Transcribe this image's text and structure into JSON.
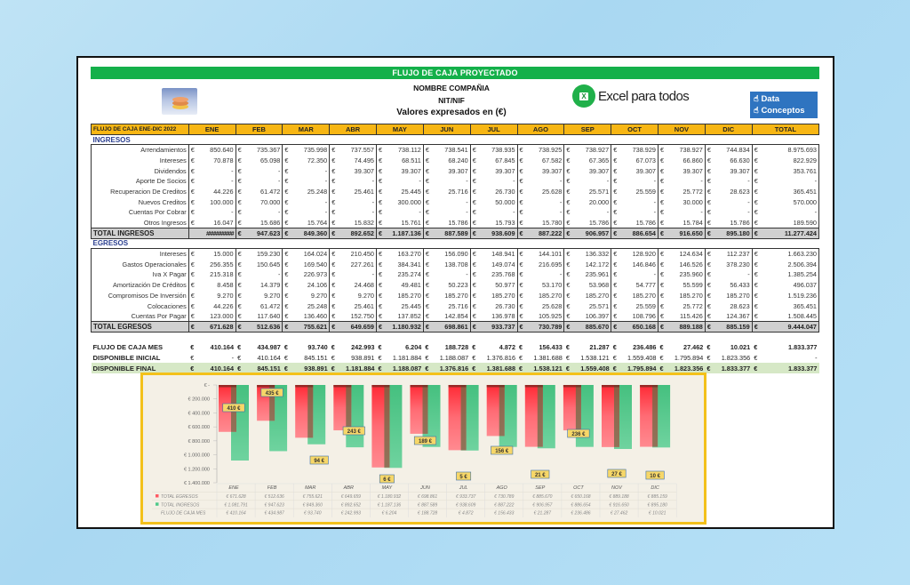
{
  "sheet": {
    "title": "FLUJO DE CAJA PROYECTADO",
    "company_name": "NOMBRE COMPAÑIA",
    "tax_id": "NIT/NIF",
    "currency_note": "Valores expresados en (€)",
    "brand": "Excel para todos",
    "brand_icon_letter": "X",
    "links": [
      {
        "icon": "pointing-hand-icon",
        "label": "Data"
      },
      {
        "icon": "pointing-hand-icon",
        "label": "Conceptos"
      }
    ]
  },
  "table": {
    "header_label": "FLUJO DE CAJA ENE-DIC 2022",
    "months": [
      "ENE",
      "FEB",
      "MAR",
      "ABR",
      "MAY",
      "JUN",
      "JUL",
      "AGO",
      "SEP",
      "OCT",
      "NOV",
      "DIC"
    ],
    "total_label": "TOTAL",
    "currency_symbol": "€",
    "ingresos": {
      "section_label": "INGRESOS",
      "rows": [
        {
          "label": "Arrendamientos",
          "values": [
            "850.640",
            "735.367",
            "735.998",
            "737.557",
            "738.112",
            "738.541",
            "738.935",
            "738.925",
            "738.927",
            "738.929",
            "738.927",
            "744.834"
          ],
          "total": "8.975.693"
        },
        {
          "label": "Intereses",
          "values": [
            "70.878",
            "65.098",
            "72.350",
            "74.495",
            "68.511",
            "68.240",
            "67.845",
            "67.582",
            "67.365",
            "67.073",
            "66.860",
            "66.630"
          ],
          "total": "822.929"
        },
        {
          "label": "Dividendos",
          "values": [
            "-",
            "-",
            "-",
            "39.307",
            "39.307",
            "39.307",
            "39.307",
            "39.307",
            "39.307",
            "39.307",
            "39.307",
            "39.307"
          ],
          "total": "353.761"
        },
        {
          "label": "Aporte De Socios",
          "values": [
            "-",
            "-",
            "-",
            "-",
            "-",
            "-",
            "-",
            "-",
            "-",
            "-",
            "-",
            "-"
          ],
          "total": "-"
        },
        {
          "label": "Recuperacion De Creditos",
          "values": [
            "44.226",
            "61.472",
            "25.248",
            "25.461",
            "25.445",
            "25.716",
            "26.730",
            "25.628",
            "25.571",
            "25.559",
            "25.772",
            "28.623"
          ],
          "total": "365.451"
        },
        {
          "label": "Nuevos Creditos",
          "values": [
            "100.000",
            "70.000",
            "-",
            "-",
            "300.000",
            "-",
            "50.000",
            "-",
            "20.000",
            "-",
            "30.000",
            "-"
          ],
          "total": "570.000"
        },
        {
          "label": "Cuentas Por Cobrar",
          "values": [
            "-",
            "-",
            "-",
            "-",
            "-",
            "-",
            "-",
            "-",
            "-",
            "-",
            "-",
            "-"
          ],
          "total": "-"
        },
        {
          "label": "Otros Ingresos",
          "values": [
            "16.047",
            "15.686",
            "15.764",
            "15.832",
            "15.761",
            "15.786",
            "15.793",
            "15.780",
            "15.786",
            "15.786",
            "15.784",
            "15.786"
          ],
          "total": "189.590"
        }
      ],
      "total_row": {
        "label": "TOTAL INGRESOS",
        "values": [
          "##########",
          "947.623",
          "849.360",
          "892.652",
          "1.187.136",
          "887.589",
          "938.609",
          "887.222",
          "906.957",
          "886.654",
          "916.650",
          "895.180"
        ],
        "total": "11.277.424"
      }
    },
    "egresos": {
      "section_label": "EGRESOS",
      "rows": [
        {
          "label": "Intereses",
          "values": [
            "15.000",
            "159.230",
            "164.024",
            "210.450",
            "163.270",
            "156.090",
            "148.941",
            "144.101",
            "136.332",
            "128.920",
            "124.634",
            "112.237"
          ],
          "total": "1.663.230"
        },
        {
          "label": "Gastos Operacionales",
          "values": [
            "256.355",
            "150.645",
            "169.540",
            "227.261",
            "384.341",
            "138.708",
            "149.074",
            "216.695",
            "142.172",
            "146.846",
            "146.526",
            "378.230"
          ],
          "total": "2.506.394"
        },
        {
          "label": "Iva X Pagar",
          "values": [
            "215.318",
            "-",
            "226.973",
            "-",
            "235.274",
            "-",
            "235.768",
            "-",
            "235.961",
            "-",
            "235.960",
            "-"
          ],
          "total": "1.385.254"
        },
        {
          "label": "Amortización De Créditos",
          "values": [
            "8.458",
            "14.379",
            "24.106",
            "24.468",
            "49.481",
            "50.223",
            "50.977",
            "53.170",
            "53.968",
            "54.777",
            "55.599",
            "56.433"
          ],
          "total": "496.037"
        },
        {
          "label": "Compromisos De Inversión",
          "values": [
            "9.270",
            "9.270",
            "9.270",
            "9.270",
            "185.270",
            "185.270",
            "185.270",
            "185.270",
            "185.270",
            "185.270",
            "185.270",
            "185.270"
          ],
          "total": "1.519.236"
        },
        {
          "label": "Colocaciones",
          "values": [
            "44.226",
            "61.472",
            "25.248",
            "25.461",
            "25.445",
            "25.716",
            "26.730",
            "25.628",
            "25.571",
            "25.559",
            "25.772",
            "28.623"
          ],
          "total": "365.451"
        },
        {
          "label": "Cuentas Por Pagar",
          "values": [
            "123.000",
            "117.640",
            "136.460",
            "152.750",
            "137.852",
            "142.854",
            "136.978",
            "105.925",
            "106.397",
            "108.796",
            "115.426",
            "124.367"
          ],
          "total": "1.508.445"
        }
      ],
      "total_row": {
        "label": "TOTAL EGRESOS",
        "values": [
          "671.628",
          "512.636",
          "755.621",
          "649.659",
          "1.180.932",
          "698.861",
          "933.737",
          "730.789",
          "885.670",
          "650.168",
          "889.188",
          "885.159"
        ],
        "total": "9.444.047"
      }
    },
    "summary": [
      {
        "label": "FLUJO DE CAJA MES",
        "values": [
          "410.164",
          "434.987",
          "93.740",
          "242.993",
          "6.204",
          "188.728",
          "4.872",
          "156.433",
          "21.287",
          "236.486",
          "27.462",
          "10.021"
        ],
        "total": "1.833.377",
        "style": "plain"
      },
      {
        "label": "DISPONIBLE INICIAL",
        "values": [
          "-",
          "410.164",
          "845.151",
          "938.891",
          "1.181.884",
          "1.188.087",
          "1.376.816",
          "1.381.688",
          "1.538.121",
          "1.559.408",
          "1.795.894",
          "1.823.356"
        ],
        "total": "-",
        "style": "initial"
      },
      {
        "label": "DISPONIBLE FINAL",
        "values": [
          "410.164",
          "845.151",
          "938.891",
          "1.181.884",
          "1.188.087",
          "1.376.816",
          "1.381.688",
          "1.538.121",
          "1.559.408",
          "1.795.894",
          "1.823.356",
          "1.833.377"
        ],
        "total": "1.833.377",
        "style": "green"
      }
    ]
  },
  "colors": {
    "title_green": "#14b04a",
    "header_orange": "#f7b614",
    "section_blue": "#2b3f8f",
    "total_gray": "#d0d0d0",
    "final_green": "#d6e8c6",
    "chart_border": "#f3c11b",
    "egresos_red": "#ff5a64",
    "ingresos_green": "#4fc98a",
    "label_yellow": "#f7d768"
  },
  "chart_data": {
    "type": "bar",
    "title": "",
    "categories": [
      "ENE",
      "FEB",
      "MAR",
      "ABR",
      "MAY",
      "JUN",
      "JUL",
      "AGO",
      "SEP",
      "OCT",
      "NOV",
      "DIC"
    ],
    "series": [
      {
        "name": "TOTAL EGRESOS",
        "values": [
          671628,
          512636,
          755621,
          649659,
          1180932,
          698861,
          933737,
          730789,
          885670,
          650168,
          889188,
          885159
        ]
      },
      {
        "name": "TOTAL INGRESOS",
        "values": [
          1081791,
          947623,
          849360,
          892652,
          1187136,
          887589,
          938609,
          887222,
          906957,
          886654,
          916650,
          895180
        ]
      },
      {
        "name": "FLUJO DE CAJA MES",
        "values": [
          410164,
          434987,
          93740,
          242993,
          6204,
          188728,
          4872,
          156433,
          21287,
          236486,
          27462,
          10021
        ]
      }
    ],
    "data_labels": [
      "410 €",
      "435 €",
      "94 €",
      "243 €",
      "6 €",
      "189 €",
      "5 €",
      "156 €",
      "21 €",
      "236 €",
      "27 €",
      "10 €"
    ],
    "y_ticks": [
      "€ -",
      "€ 200.000",
      "€ 400.000",
      "€ 600.000",
      "€ 800.000",
      "€ 1.000.000",
      "€ 1.200.000",
      "€ 1.400.000"
    ],
    "ylim": [
      0,
      1400000
    ],
    "y_inverted": true,
    "legend_position": "data-table",
    "data_table": {
      "rows": [
        {
          "label": "TOTAL EGRESOS",
          "values": [
            "€ 671.628",
            "€ 512.636",
            "€ 755.621",
            "€ 649.659",
            "€ 1.180.932",
            "€ 698.861",
            "€ 933.737",
            "€ 730.789",
            "€ 885.670",
            "€ 650.168",
            "€ 889.188",
            "€ 885.159"
          ]
        },
        {
          "label": "TOTAL INGRESOS",
          "values": [
            "€ 1.081.791",
            "€ 947.623",
            "€ 849.360",
            "€ 892.652",
            "€ 1.187.136",
            "€ 887.589",
            "€ 938.609",
            "€ 887.222",
            "€ 906.957",
            "€ 886.654",
            "€ 916.650",
            "€ 895.180"
          ]
        },
        {
          "label": "FLUJO DE CAJA MES",
          "values": [
            "€ 410.164",
            "€ 434.987",
            "€ 93.740",
            "€ 242.993",
            "€ 6.204",
            "€ 188.728",
            "€ 4.872",
            "€ 156.433",
            "€ 21.287",
            "€ 236.486",
            "€ 27.462",
            "€ 10.021"
          ]
        }
      ]
    }
  }
}
